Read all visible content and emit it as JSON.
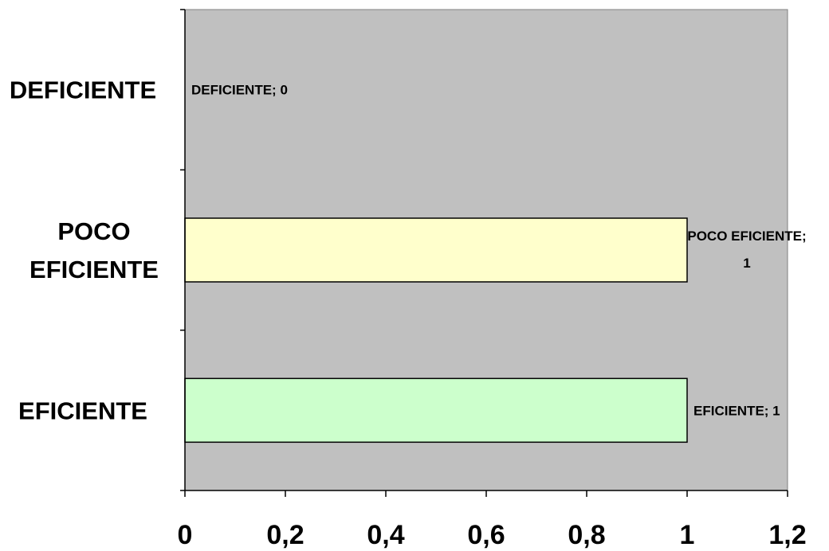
{
  "chart_data": {
    "type": "bar",
    "orientation": "horizontal",
    "categories": [
      "DEFICIENTE",
      "POCO EFICIENTE",
      "EFICIENTE"
    ],
    "category_label_lines": [
      [
        "DEFICIENTE"
      ],
      [
        "POCO",
        "EFICIENTE"
      ],
      [
        "EFICIENTE"
      ]
    ],
    "values": [
      0,
      1,
      1
    ],
    "data_labels": [
      [
        "DEFICIENTE; 0"
      ],
      [
        "POCO EFICIENTE;",
        "1"
      ],
      [
        "EFICIENTE; 1"
      ]
    ],
    "bar_colors": [
      "#FFFFCC",
      "#FFFFCC",
      "#CCFFCC"
    ],
    "x_ticks": [
      0,
      0.2,
      0.4,
      0.6,
      0.8,
      1,
      1.2
    ],
    "x_tick_labels": [
      "0",
      "0,2",
      "0,4",
      "0,6",
      "0,8",
      "1",
      "1,2"
    ],
    "xlim": [
      0,
      1.2
    ],
    "grid": false,
    "legend": "none",
    "plot_background": "#C0C0C0",
    "title": "",
    "xlabel": "",
    "ylabel": ""
  }
}
